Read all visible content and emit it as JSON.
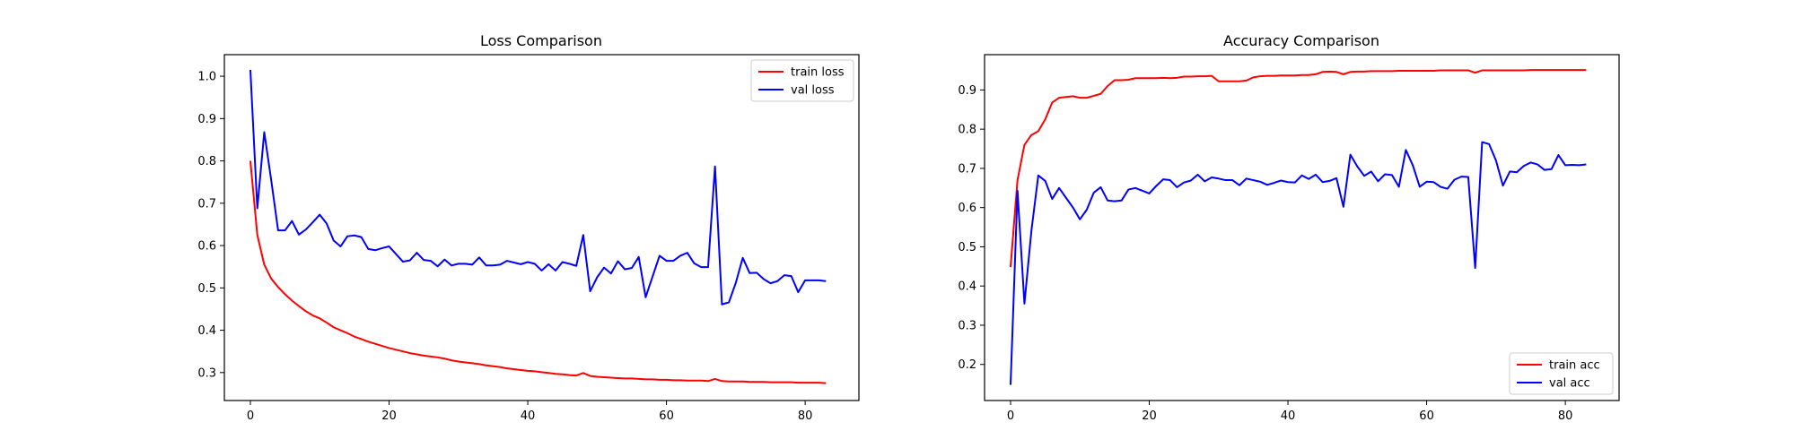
{
  "figure": {
    "background": "#ffffff",
    "colors": {
      "train": "#ff0000",
      "val": "#0000ff"
    }
  },
  "chart_data": [
    {
      "type": "line",
      "title": "Loss Comparison",
      "xlabel": "",
      "ylabel": "",
      "xlim": [
        -3.75,
        87.75
      ],
      "ylim": [
        0.234,
        1.051
      ],
      "xticks": [
        0,
        20,
        40,
        60,
        80
      ],
      "yticks": [
        0.3,
        0.4,
        0.5,
        0.6,
        0.7,
        0.8,
        0.9,
        1.0
      ],
      "xtick_labels": [
        "0",
        "20",
        "40",
        "60",
        "80"
      ],
      "ytick_labels": [
        "0.3",
        "0.4",
        "0.5",
        "0.6",
        "0.7",
        "0.8",
        "0.9",
        "1.0"
      ],
      "grid": false,
      "legend": "upper right",
      "series": [
        {
          "name": "train loss",
          "color": "#ff0000",
          "values": [
            0.8,
            0.625,
            0.555,
            0.522,
            0.502,
            0.485,
            0.47,
            0.457,
            0.445,
            0.435,
            0.428,
            0.418,
            0.407,
            0.4,
            0.393,
            0.385,
            0.379,
            0.373,
            0.368,
            0.363,
            0.358,
            0.354,
            0.35,
            0.346,
            0.343,
            0.34,
            0.338,
            0.336,
            0.333,
            0.329,
            0.326,
            0.324,
            0.322,
            0.32,
            0.317,
            0.315,
            0.313,
            0.31,
            0.308,
            0.306,
            0.304,
            0.303,
            0.301,
            0.299,
            0.297,
            0.296,
            0.294,
            0.293,
            0.299,
            0.292,
            0.29,
            0.289,
            0.288,
            0.287,
            0.286,
            0.286,
            0.285,
            0.284,
            0.284,
            0.283,
            0.283,
            0.282,
            0.282,
            0.281,
            0.281,
            0.281,
            0.28,
            0.285,
            0.28,
            0.279,
            0.279,
            0.279,
            0.278,
            0.278,
            0.278,
            0.277,
            0.277,
            0.277,
            0.277,
            0.276,
            0.276,
            0.276,
            0.276,
            0.275
          ]
        },
        {
          "name": "val loss",
          "color": "#0000ff",
          "values": [
            1.015,
            0.688,
            0.868,
            0.755,
            0.636,
            0.636,
            0.658,
            0.626,
            0.638,
            0.655,
            0.673,
            0.652,
            0.612,
            0.598,
            0.622,
            0.624,
            0.62,
            0.592,
            0.589,
            0.594,
            0.598,
            0.58,
            0.562,
            0.565,
            0.583,
            0.566,
            0.564,
            0.551,
            0.567,
            0.553,
            0.557,
            0.557,
            0.555,
            0.572,
            0.553,
            0.553,
            0.555,
            0.564,
            0.56,
            0.556,
            0.561,
            0.557,
            0.541,
            0.556,
            0.541,
            0.561,
            0.557,
            0.552,
            0.625,
            0.492,
            0.525,
            0.548,
            0.534,
            0.563,
            0.544,
            0.547,
            0.573,
            0.478,
            0.527,
            0.576,
            0.564,
            0.564,
            0.576,
            0.583,
            0.558,
            0.549,
            0.549,
            0.787,
            0.461,
            0.466,
            0.512,
            0.571,
            0.535,
            0.536,
            0.521,
            0.511,
            0.516,
            0.53,
            0.528,
            0.49,
            0.518,
            0.518,
            0.518,
            0.516
          ]
        }
      ]
    },
    {
      "type": "line",
      "title": "Accuracy Comparison",
      "xlabel": "",
      "ylabel": "",
      "xlim": [
        -3.75,
        87.75
      ],
      "ylim": [
        0.108,
        0.99
      ],
      "xticks": [
        0,
        20,
        40,
        60,
        80
      ],
      "yticks": [
        0.2,
        0.3,
        0.4,
        0.5,
        0.6,
        0.7,
        0.8,
        0.9
      ],
      "xtick_labels": [
        "0",
        "20",
        "40",
        "60",
        "80"
      ],
      "ytick_labels": [
        "0.2",
        "0.3",
        "0.4",
        "0.5",
        "0.6",
        "0.7",
        "0.8",
        "0.9"
      ],
      "grid": false,
      "legend": "lower right",
      "series": [
        {
          "name": "train acc",
          "color": "#ff0000",
          "values": [
            0.448,
            0.67,
            0.76,
            0.785,
            0.795,
            0.825,
            0.868,
            0.88,
            0.882,
            0.884,
            0.88,
            0.88,
            0.885,
            0.89,
            0.91,
            0.925,
            0.925,
            0.926,
            0.93,
            0.93,
            0.93,
            0.93,
            0.931,
            0.93,
            0.931,
            0.934,
            0.934,
            0.935,
            0.935,
            0.936,
            0.922,
            0.922,
            0.922,
            0.922,
            0.924,
            0.932,
            0.935,
            0.936,
            0.936,
            0.937,
            0.937,
            0.937,
            0.938,
            0.938,
            0.94,
            0.946,
            0.947,
            0.946,
            0.94,
            0.946,
            0.947,
            0.947,
            0.948,
            0.948,
            0.948,
            0.948,
            0.949,
            0.949,
            0.949,
            0.949,
            0.949,
            0.949,
            0.95,
            0.95,
            0.95,
            0.95,
            0.95,
            0.944,
            0.95,
            0.95,
            0.95,
            0.95,
            0.95,
            0.95,
            0.95,
            0.951,
            0.951,
            0.951,
            0.951,
            0.951,
            0.951,
            0.951,
            0.951,
            0.951
          ]
        },
        {
          "name": "val acc",
          "color": "#0000ff",
          "values": [
            0.148,
            0.643,
            0.355,
            0.54,
            0.682,
            0.668,
            0.622,
            0.65,
            0.625,
            0.6,
            0.57,
            0.595,
            0.638,
            0.652,
            0.618,
            0.616,
            0.618,
            0.646,
            0.65,
            0.643,
            0.636,
            0.655,
            0.672,
            0.67,
            0.652,
            0.664,
            0.669,
            0.684,
            0.667,
            0.677,
            0.674,
            0.67,
            0.67,
            0.657,
            0.674,
            0.67,
            0.666,
            0.658,
            0.663,
            0.669,
            0.665,
            0.664,
            0.682,
            0.673,
            0.684,
            0.665,
            0.668,
            0.675,
            0.602,
            0.735,
            0.705,
            0.681,
            0.692,
            0.667,
            0.685,
            0.683,
            0.653,
            0.747,
            0.708,
            0.653,
            0.666,
            0.665,
            0.653,
            0.648,
            0.671,
            0.679,
            0.678,
            0.446,
            0.767,
            0.762,
            0.72,
            0.656,
            0.692,
            0.69,
            0.706,
            0.715,
            0.71,
            0.696,
            0.698,
            0.734,
            0.708,
            0.709,
            0.708,
            0.71
          ]
        }
      ]
    }
  ]
}
